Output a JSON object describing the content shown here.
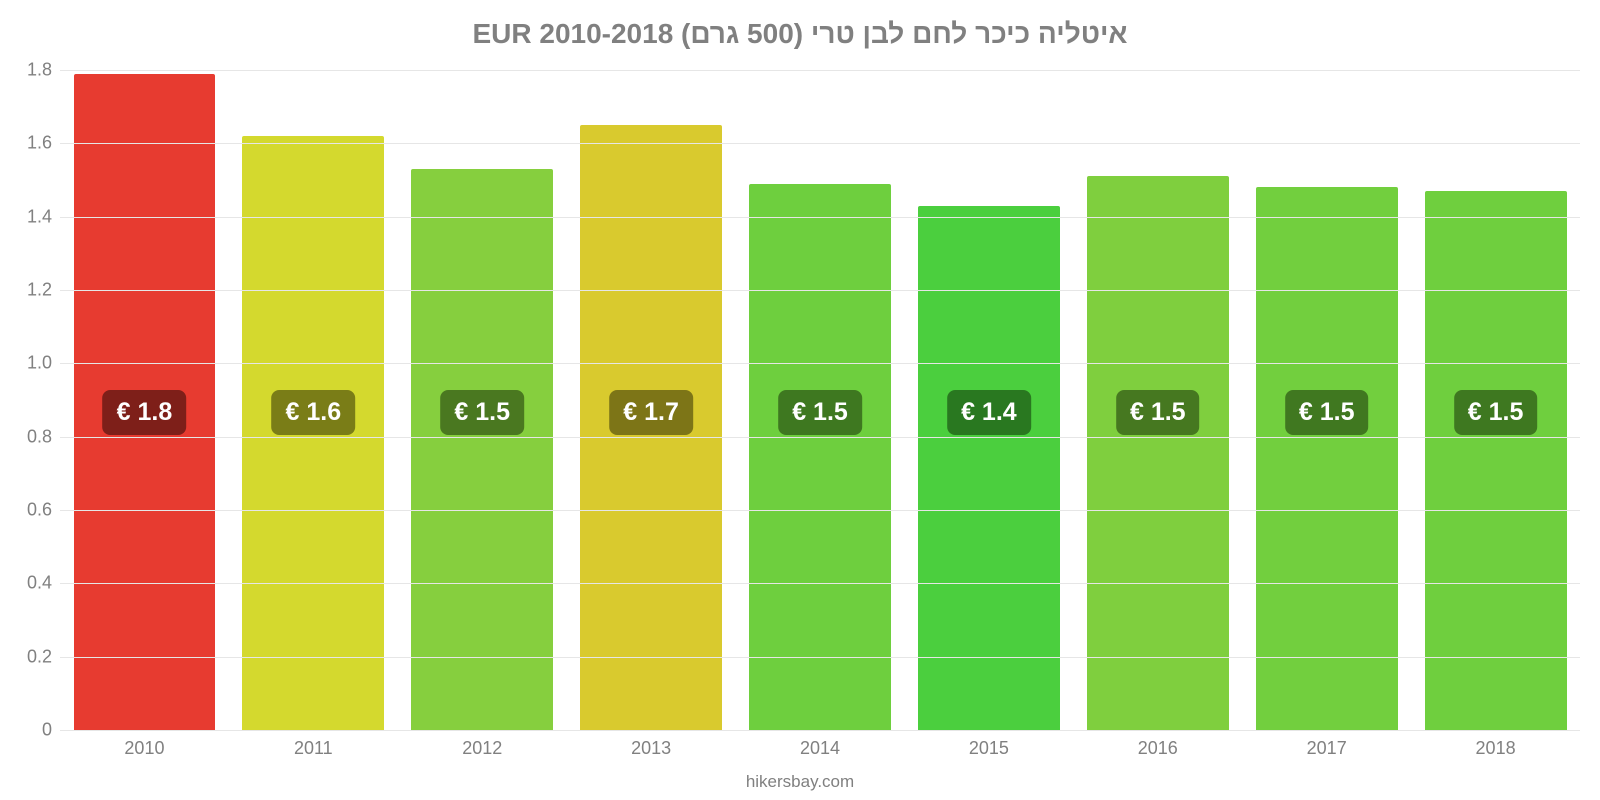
{
  "chart": {
    "type": "bar",
    "title": "איטליה כיכר לחם לבן טרי (500 גרם) EUR 2010-2018",
    "title_color": "#808080",
    "title_fontsize": 28,
    "background_color": "#ffffff",
    "grid_color": "#e6e6e6",
    "axis_label_color": "#808080",
    "axis_fontsize": 18,
    "ylim": [
      0,
      1.8
    ],
    "ytick_step": 0.2,
    "yticks": [
      "0",
      "0.2",
      "0.4",
      "0.6",
      "0.8",
      "1.0",
      "1.2",
      "1.4",
      "1.6",
      "1.8"
    ],
    "categories": [
      "2010",
      "2011",
      "2012",
      "2013",
      "2014",
      "2015",
      "2016",
      "2017",
      "2018"
    ],
    "values": [
      1.79,
      1.62,
      1.53,
      1.65,
      1.49,
      1.43,
      1.51,
      1.48,
      1.47
    ],
    "value_labels": [
      "€ 1.8",
      "€ 1.6",
      "€ 1.5",
      "€ 1.7",
      "€ 1.5",
      "€ 1.4",
      "€ 1.5",
      "€ 1.5",
      "€ 1.5"
    ],
    "bar_colors": [
      "#e73b30",
      "#d4d92e",
      "#86cf3e",
      "#d9ca2e",
      "#6ecf3e",
      "#4bcf3e",
      "#7fcf3e",
      "#72cf3e",
      "#6fcf3e"
    ],
    "label_bg_colors": [
      "#7e1f19",
      "#7a7d17",
      "#4a7820",
      "#7d7517",
      "#3e7820",
      "#297820",
      "#467820",
      "#407820",
      "#3e7820"
    ],
    "label_fontsize": 25,
    "label_text_color": "#ffffff",
    "bar_width": 0.84,
    "attribution": "hikersbay.com"
  }
}
